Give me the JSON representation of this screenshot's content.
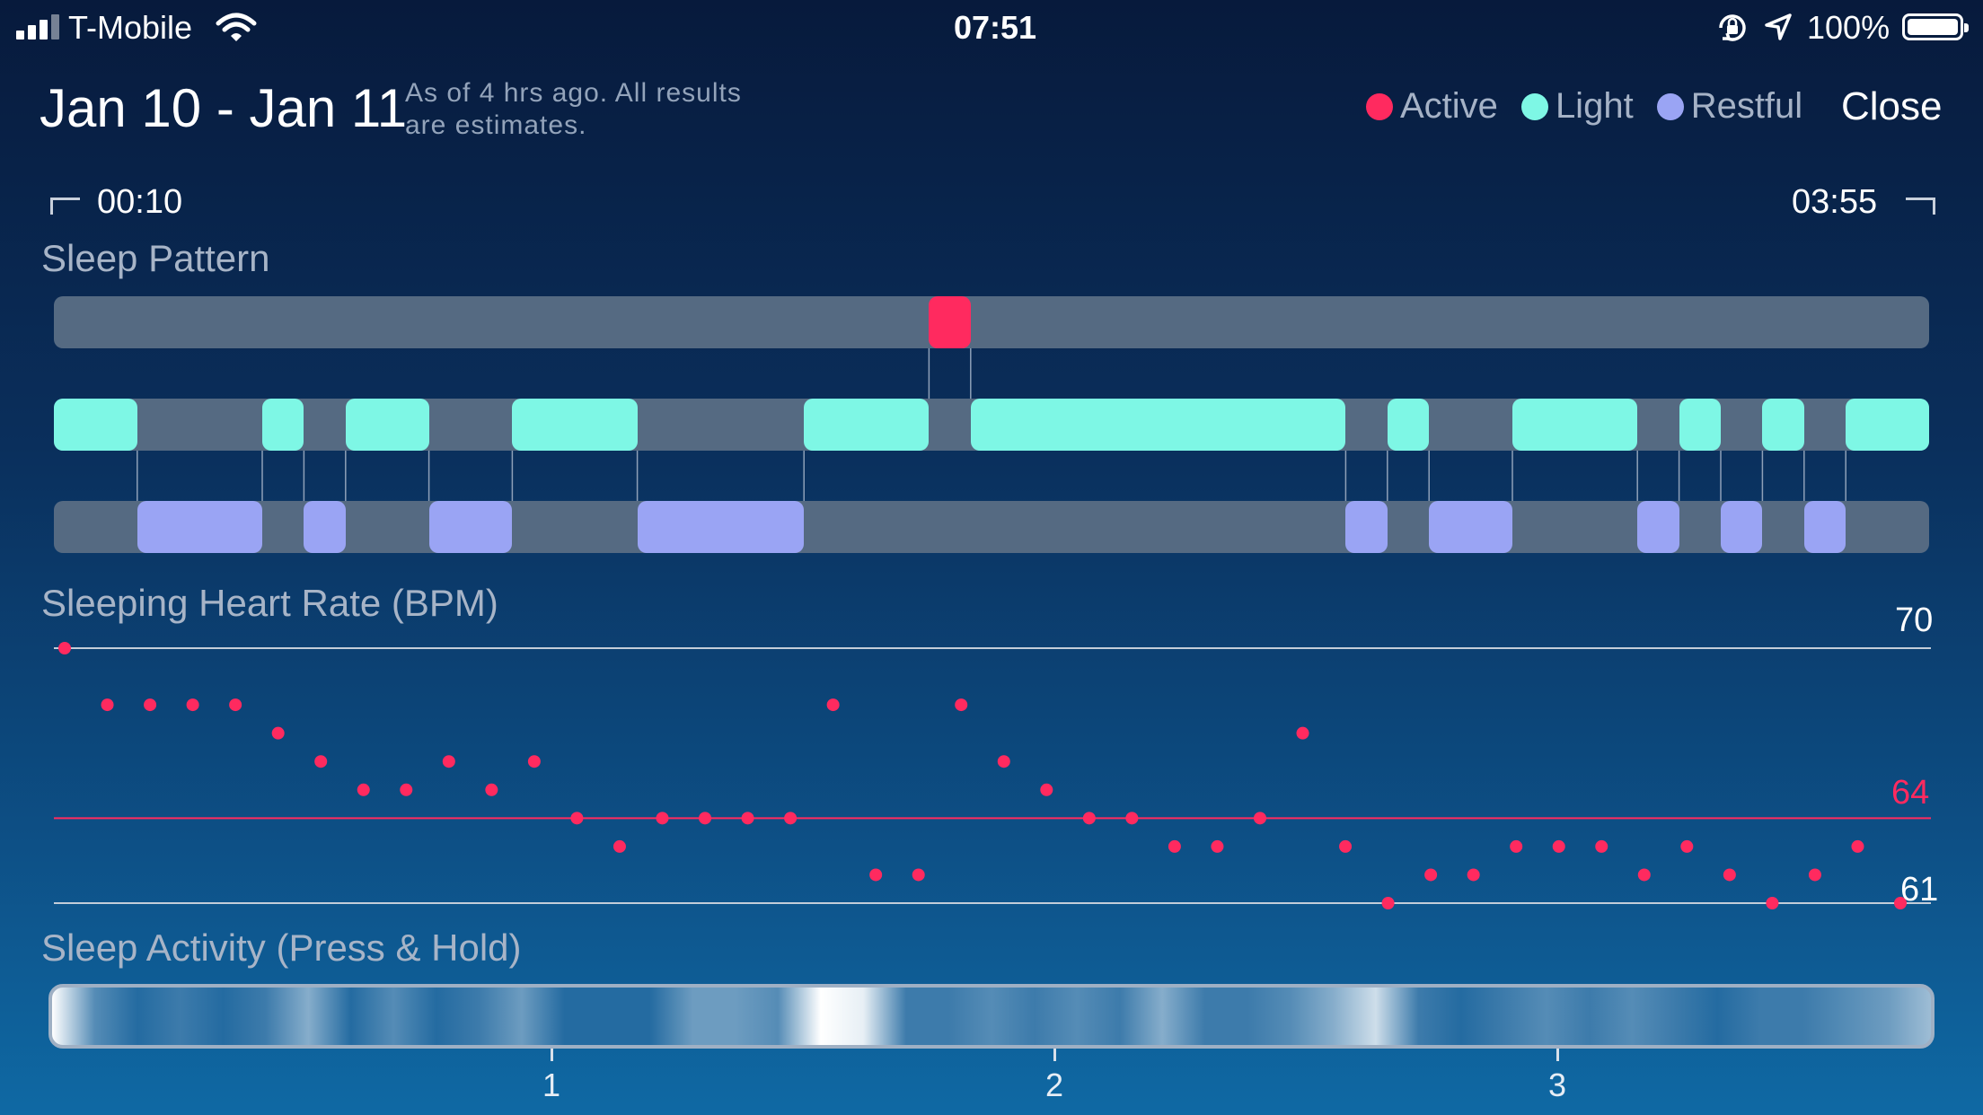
{
  "status_bar": {
    "carrier": "T-Mobile",
    "time": "07:51",
    "battery": "100%",
    "icons": [
      "signal-icon",
      "wifi-icon",
      "orientation-lock-icon",
      "location-arrow-icon",
      "battery-icon"
    ]
  },
  "header": {
    "date_range": "Jan 10 - Jan 11",
    "note_line1": "As of 4 hrs ago. All results",
    "note_line2": "are estimates.",
    "close_label": "Close"
  },
  "legend": [
    {
      "label": "Active",
      "color": "#ff2a5f"
    },
    {
      "label": "Light",
      "color": "#7ef7e5"
    },
    {
      "label": "Restful",
      "color": "#9aa4f4"
    }
  ],
  "time_range": {
    "start": "00:10",
    "end": "03:55"
  },
  "sleep_pattern": {
    "title": "Sleep Pattern",
    "total_units": 45,
    "active": [
      [
        21,
        22
      ]
    ],
    "light": [
      [
        0,
        2
      ],
      [
        5,
        6
      ],
      [
        7,
        9
      ],
      [
        11,
        14
      ],
      [
        18,
        21
      ],
      [
        22,
        31
      ],
      [
        32,
        33
      ],
      [
        35,
        38
      ],
      [
        39,
        40
      ],
      [
        41,
        42
      ],
      [
        43,
        45
      ]
    ],
    "restful": [
      [
        2,
        5
      ],
      [
        6,
        7
      ],
      [
        9,
        11
      ],
      [
        14,
        18
      ],
      [
        31,
        32
      ],
      [
        33,
        35
      ],
      [
        38,
        39
      ],
      [
        40,
        41
      ],
      [
        42,
        43
      ]
    ]
  },
  "heart_rate": {
    "title": "Sleeping Heart Rate (BPM)",
    "max_label": "70",
    "avg_label": "64",
    "min_label": "61",
    "y_max": 70,
    "y_min": 61,
    "avg": 64,
    "values": [
      70,
      68,
      68,
      68,
      68,
      67,
      66,
      65,
      65,
      66,
      65,
      66,
      64,
      63,
      64,
      64,
      64,
      64,
      68,
      62,
      62,
      68,
      66,
      65,
      64,
      64,
      63,
      63,
      64,
      67,
      63,
      61,
      62,
      62,
      63,
      63,
      63,
      62,
      63,
      62,
      61,
      62,
      63,
      61
    ]
  },
  "sleep_activity": {
    "title": "Sleep Activity (Press & Hold)",
    "ticks": [
      "1",
      "2",
      "3"
    ],
    "tick_hours": [
      1,
      2,
      3
    ],
    "range_hours": [
      0,
      3.75
    ],
    "intensity": [
      1,
      0.3,
      0.1,
      0.2,
      0.1,
      0.2,
      0.5,
      0.1,
      0.3,
      0.1,
      0.2,
      0.4,
      0.1,
      0.1,
      0.1,
      0.4,
      0.4,
      0.3,
      1,
      0.9,
      0.2,
      0.2,
      0.3,
      0.2,
      0.3,
      0.2,
      0.5,
      0.2,
      0.2,
      0.3,
      0.5,
      0.8,
      0.2,
      0.1,
      0.2,
      0.3,
      0.2,
      0.3,
      0.2,
      0.1,
      0.2,
      0.2,
      0.3,
      0.4,
      0.6
    ]
  }
}
